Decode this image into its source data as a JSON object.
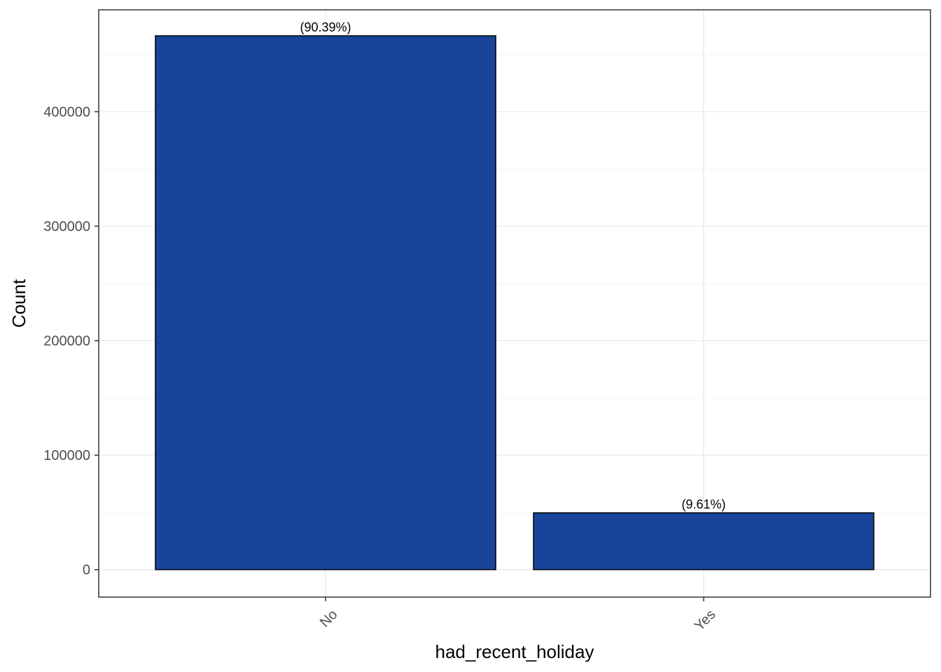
{
  "chart_data": {
    "type": "bar",
    "categories": [
      "No",
      "Yes"
    ],
    "values": [
      466300,
      49600
    ],
    "data_labels": [
      "(90.39%)",
      "(9.61%)"
    ],
    "xlabel": "had_recent_holiday",
    "ylabel": "Count",
    "ylim": [
      -24000,
      489000
    ],
    "yticks": [
      0,
      100000,
      200000,
      300000,
      400000
    ],
    "ytick_labels": [
      "0",
      "100000",
      "200000",
      "300000",
      "400000"
    ],
    "grid": true,
    "legend": "none"
  },
  "colors": {
    "bar_fill": "#18449B",
    "bar_stroke": "#000000",
    "grid_major": "#EBEBEB",
    "grid_minor": "#F4F4F4",
    "panel_border": "#333333"
  }
}
